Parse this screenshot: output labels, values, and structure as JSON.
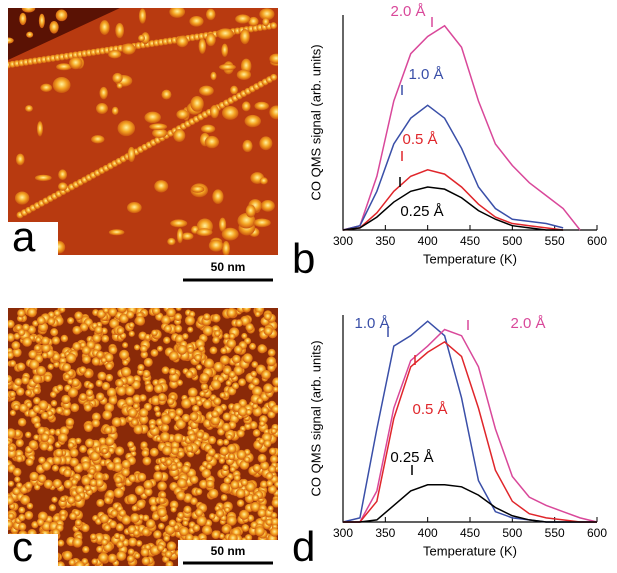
{
  "panels": {
    "letters": [
      "a",
      "b",
      "c",
      "d"
    ],
    "scale_bars": [
      "50 nm",
      "50 nm"
    ]
  },
  "chart_data": [
    {
      "type": "line",
      "x_label": "Temperature (K)",
      "y_label": "CO QMS signal (arb. units)",
      "x": [
        300,
        320,
        340,
        360,
        380,
        400,
        420,
        440,
        460,
        480,
        500,
        520,
        540,
        560,
        580,
        600
      ],
      "xlim": [
        300,
        600
      ],
      "xticks": [
        300,
        350,
        400,
        450,
        500,
        550,
        600
      ],
      "ylim": [
        0,
        1
      ],
      "series": [
        {
          "name": "2.0 Å",
          "color": "#d9489a",
          "values": [
            0,
            0.02,
            0.25,
            0.6,
            0.82,
            0.9,
            0.95,
            0.85,
            0.6,
            0.4,
            0.3,
            0.22,
            0.16,
            0.1,
            0,
            null
          ]
        },
        {
          "name": "1.0 Å",
          "color": "#3a4fa8",
          "values": [
            0,
            0.02,
            0.18,
            0.4,
            0.52,
            0.58,
            0.52,
            0.38,
            0.2,
            0.1,
            0.05,
            0.04,
            0.03,
            0.01,
            null,
            null
          ]
        },
        {
          "name": "0.5 Å",
          "color": "#e0262b",
          "values": [
            0,
            0.01,
            0.08,
            0.18,
            0.25,
            0.28,
            0.26,
            0.2,
            0.12,
            0.06,
            0.03,
            0.02,
            0.01,
            0,
            null,
            null
          ]
        },
        {
          "name": "0.25 Å",
          "color": "#000000",
          "values": [
            0,
            0.01,
            0.06,
            0.13,
            0.18,
            0.2,
            0.19,
            0.15,
            0.09,
            0.05,
            0.02,
            0.01,
            0,
            0,
            null,
            null
          ]
        }
      ]
    },
    {
      "type": "line",
      "x_label": "Temperature (K)",
      "y_label": "CO QMS signal (arb. units)",
      "x": [
        300,
        320,
        340,
        360,
        380,
        400,
        420,
        440,
        460,
        480,
        500,
        520,
        540,
        560,
        580,
        600
      ],
      "xlim": [
        300,
        600
      ],
      "xticks": [
        300,
        350,
        400,
        450,
        500,
        550,
        600
      ],
      "ylim": [
        0,
        1
      ],
      "series": [
        {
          "name": "1.0 Å",
          "color": "#3a4fa8",
          "values": [
            0,
            0.02,
            0.45,
            0.85,
            0.9,
            0.97,
            0.9,
            0.6,
            0.2,
            0.05,
            0.02,
            0.01,
            0,
            0,
            0,
            0
          ]
        },
        {
          "name": "2.0 Å",
          "color": "#d9489a",
          "values": [
            0,
            0,
            0.15,
            0.55,
            0.78,
            0.85,
            0.93,
            0.9,
            0.75,
            0.45,
            0.22,
            0.12,
            0.08,
            0.05,
            0.02,
            0
          ]
        },
        {
          "name": "0.5 Å",
          "color": "#e0262b",
          "values": [
            0,
            0,
            0.1,
            0.5,
            0.75,
            0.82,
            0.87,
            0.8,
            0.55,
            0.25,
            0.1,
            0.04,
            0.02,
            0.01,
            0,
            0
          ]
        },
        {
          "name": "0.25 Å",
          "color": "#000000",
          "values": [
            0,
            0,
            0.01,
            0.08,
            0.15,
            0.18,
            0.18,
            0.17,
            0.13,
            0.07,
            0.03,
            0.01,
            0,
            0,
            0,
            0
          ]
        }
      ]
    }
  ]
}
